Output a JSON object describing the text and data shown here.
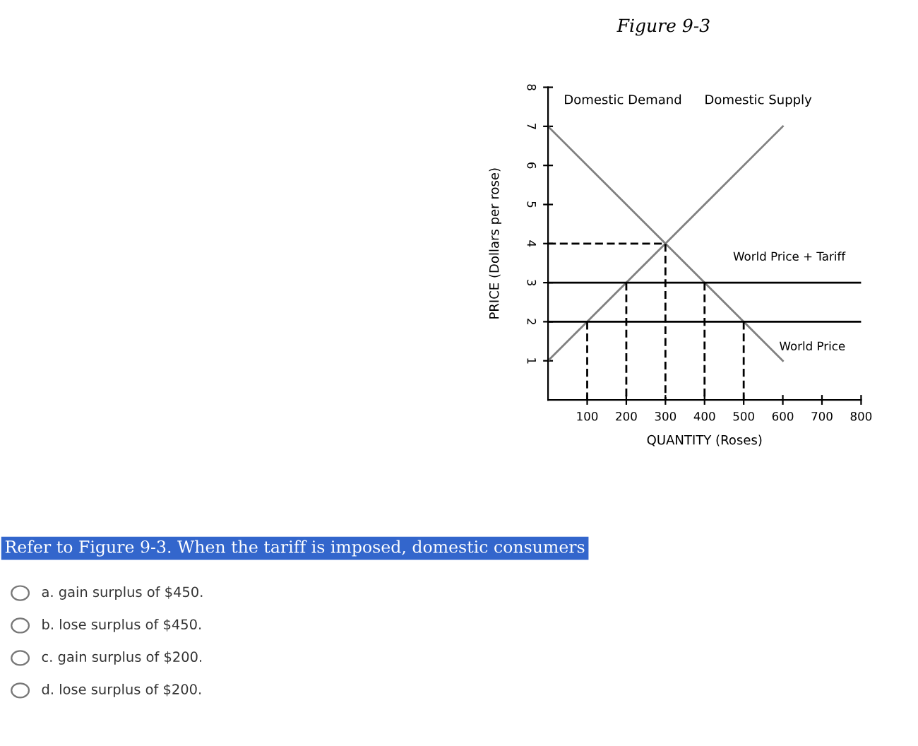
{
  "chart_data": {
    "type": "line",
    "title": "Figure 9-3",
    "xlabel": "QUANTITY (Roses)",
    "ylabel": "PRICE (Dollars per rose)",
    "xlim": [
      0,
      800
    ],
    "xticks": [
      100,
      200,
      300,
      400,
      500,
      600,
      700,
      800
    ],
    "ylim": [
      0,
      8
    ],
    "yticks": [
      1,
      2,
      3,
      4,
      5,
      6,
      7,
      8
    ],
    "grid": false,
    "marker": "none",
    "series": [
      {
        "name": "Domestic Demand",
        "color": "#808080",
        "x": [
          0,
          600
        ],
        "values": [
          7,
          1
        ]
      },
      {
        "name": "Domestic Supply",
        "color": "#808080",
        "x": [
          0,
          600
        ],
        "values": [
          1,
          7
        ]
      },
      {
        "color": "#000000",
        "line_style": "dashed",
        "x": [
          0,
          300,
          300
        ],
        "values": [
          4,
          4,
          0
        ]
      },
      {
        "color": "#000000",
        "line_style": "dashed",
        "x": [
          100,
          100
        ],
        "values": [
          2,
          0
        ]
      },
      {
        "color": "#000000",
        "line_style": "dashed",
        "x": [
          200,
          200
        ],
        "values": [
          3,
          0
        ]
      },
      {
        "color": "#000000",
        "line_style": "dashed",
        "x": [
          400,
          400
        ],
        "values": [
          3,
          0
        ]
      },
      {
        "color": "#000000",
        "line_style": "dashed",
        "x": [
          500,
          500
        ],
        "values": [
          2,
          0
        ]
      }
    ],
    "ref_lines": [
      {
        "axis": "y",
        "value": 3,
        "label": "World Price + Tariff",
        "color": "#000000"
      },
      {
        "axis": "y",
        "value": 2,
        "label": "World Price",
        "color": "#000000"
      }
    ],
    "annotations": [
      "Refer to Figure 9-3. When the tariff is imposed, domestic consumers",
      "a. gain surplus of $450.",
      "b. lose surplus of $450.",
      "c. gain surplus of $200.",
      "d. lose surplus of $200."
    ]
  }
}
